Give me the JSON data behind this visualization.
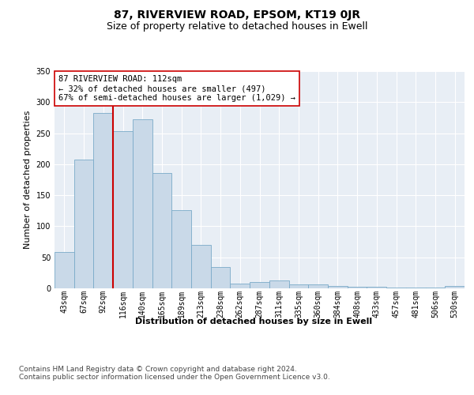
{
  "title": "87, RIVERVIEW ROAD, EPSOM, KT19 0JR",
  "subtitle": "Size of property relative to detached houses in Ewell",
  "xlabel": "Distribution of detached houses by size in Ewell",
  "ylabel": "Number of detached properties",
  "categories": [
    "43sqm",
    "67sqm",
    "92sqm",
    "116sqm",
    "140sqm",
    "165sqm",
    "189sqm",
    "213sqm",
    "238sqm",
    "262sqm",
    "287sqm",
    "311sqm",
    "335sqm",
    "360sqm",
    "384sqm",
    "408sqm",
    "433sqm",
    "457sqm",
    "481sqm",
    "506sqm",
    "530sqm"
  ],
  "values": [
    58,
    208,
    283,
    253,
    272,
    186,
    126,
    70,
    35,
    8,
    10,
    13,
    7,
    6,
    4,
    2,
    2,
    1,
    1,
    1,
    4
  ],
  "bar_color": "#c9d9e8",
  "bar_edge_color": "#7aaac8",
  "vline_x_index": 2,
  "vline_color": "#cc0000",
  "annotation_text": "87 RIVERVIEW ROAD: 112sqm\n← 32% of detached houses are smaller (497)\n67% of semi-detached houses are larger (1,029) →",
  "annotation_box_color": "#ffffff",
  "annotation_box_edge": "#cc0000",
  "footer_text": "Contains HM Land Registry data © Crown copyright and database right 2024.\nContains public sector information licensed under the Open Government Licence v3.0.",
  "ylim": [
    0,
    350
  ],
  "yticks": [
    0,
    50,
    100,
    150,
    200,
    250,
    300,
    350
  ],
  "bg_color": "#e8eef5",
  "grid_color": "#ffffff",
  "title_fontsize": 10,
  "subtitle_fontsize": 9,
  "xlabel_fontsize": 8,
  "ylabel_fontsize": 8,
  "tick_fontsize": 7,
  "annotation_fontsize": 7.5,
  "footer_fontsize": 6.5
}
